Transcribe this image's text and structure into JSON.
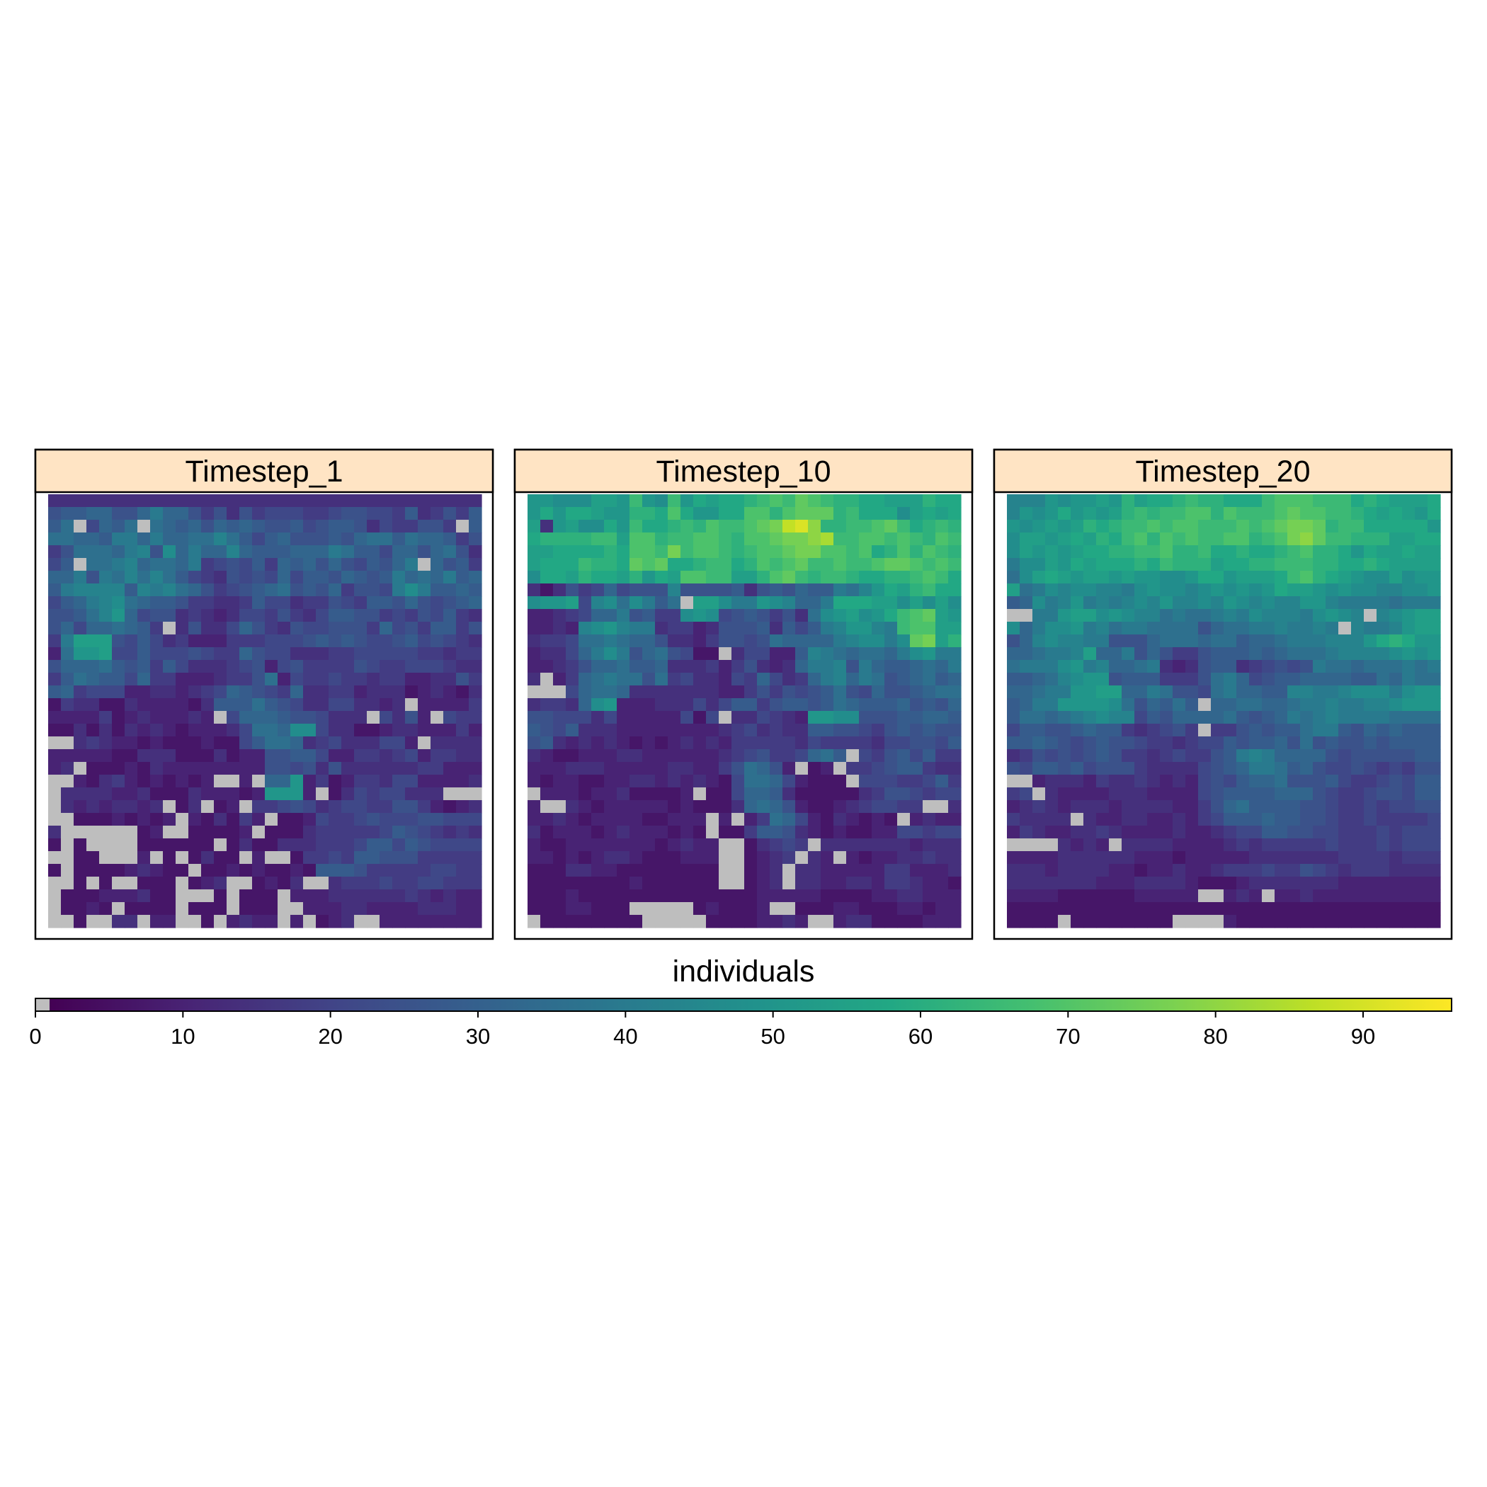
{
  "chart_data": {
    "type": "heatmap",
    "title": "",
    "legend": {
      "title": "individuals",
      "position": "bottom",
      "range": [
        0,
        96
      ],
      "ticks": [
        0,
        10,
        20,
        30,
        40,
        50,
        60,
        70,
        80,
        90
      ],
      "tick_labels": [
        "0",
        "10",
        "20",
        "30",
        "40",
        "50",
        "60",
        "70",
        "80",
        "90"
      ],
      "zero_color": "#bebebe",
      "palette": "viridis"
    },
    "grid": {
      "rows": 34,
      "cols": 34,
      "na_color": "#ffffff"
    },
    "panels": [
      {
        "name": "Timestep_1",
        "rows": [
          "DDDDDDDDDDDDDDDDDDDDDDDDDDDDDDDDDD",
          "GHHIIGGIKIIGEGDGEFFFEEFGGFFEHDEGEH",
          "HJ0FIHJ0JIHIGIHIHGGHFGHHGDFEEGGE0H",
          "JJIIHKKIKIIJJLJHFHIGGGHGIJJHJIIHEG",
          "EGJJJIKLGMIKIILIHHHIIIKJHHFIIGIJGD",
          "FH0JJKLIJJIKEFGFHEIHIGIGFHGIK0IGHE",
          "IIKGKJLJLJHFEDGFGFIFHHGIHGHKIJIKHI",
          "HKLLLLHLKLJIGEFGHIJGHGIEGGFKMKHHIH",
          "FHIKLMJIHHGEEDDEHFFDEEGFEHHGIGFGHI",
          "GGHJLNIFGGDEDCDFFEGEDFHHGGEFEGFHED",
          "GIFIIJIHE0DGDDFIGEDGFFGGGEIFGEHHEG",
          "EKOOOGFHFDECCCEEEFFFGHGHGFFGHFGFED",
          "CJNNOFFHFFFGFEEIGFFDDDEEFFFFFEEDEE",
          "GIIIJHGHEHFDDDEFGCFGEEEEGFEEFFFEDD",
          "EHJIHHFIEECCCDEEGJCFEEFEEDEECCDDGE",
          "HIEFFFCCDDCDEFIHGFEIDDEECDDDBCDCBD",
          "BEDDBBDCCCCBDHHHJHGFDDFFDDCD0CCCCE",
          "CCCCEBCDCCCDC0FIIIHGGFDDD0FDGC0FEE",
          "BBDBDBDCDCBCCCDFJJIMMFDDBBCDDCCCEC",
          "00DEDCCBCBBBCBBFHJJIDEFDDDFFC0DDDD",
          "CCCCCBBDDDBBBDBCCGGHHFCCEEDEFCEEDD",
          "CD0BBBCBDCCCCCCCCGGFGDGDDDDDDEECCC",
          "00CBDECBCBCBC00C0IINCEBCEEDFFCCCCD",
          "0DDDDCCDBBBDCCCBCNNNC0BDFEFFDDD000",
          "0DCDCDDCD0BD0BC0EEFGFDEFFEEGGECBCD",
          "00BBBCBCBC0CBDBEC0BBCFEEFGFFFGGFFF",
          "D000000BC00BBBBC0BBBDEEEEEFHGFEDED",
          "B0B0000BBBBBB0BDBBDDDEEEFHHFHGFFFF",
          "00BB000C0B0BDBB0C00BEEFEHHGGGEEEEE",
          "B0BBBBCDCBB0BBCBCBBCBHHHGEEEEEFFEE",
          "00B0B00BBB0BCD00BCBD00DEEEFEEFFEEE",
          "0BBBCCCDBB000B0BBB0CCCDDDDDDEDCDCC",
          "0BBCB0BBBB0BBB0BBB00CCCDDCCCCDDDCC",
          "00B00DD0CC00B0CDCC0C0BCD00CCCCCCCC"
        ]
      },
      {
        "name": "Timestep_10",
        "rows": [
          "NNMMMOONRNMRNPOPPQRSRTSRQQPPOOOQPP",
          "NPNPPONNQQPSPNNPPSSQSTTTQRPPPMOPOP",
          "ODNOMMPNRPPQRQSRRSTUXYVQQRRSTRPQRQ",
          "PQQQQRROSSQRRSSRQSSTUUVWRRSSRSRQSR",
          "OOPPPPQPSSRURSSRQRSSTUUSSRSPQSQSRQ",
          "OPPPRQQPTSTPPQRRPQSRSTRRSRRSTTSRSR",
          "MPPOQPPOQNPOSSRROOQSTRQRRQPPQQRSRP",
          "DBDGEFIFGGGLGGGGHDGHGIHHKJLNPOQRPP",
          "MNNOFLMJMKHJ0OOMKKNMLIIKPPPOOMOMOM",
          "CCDEFIIKGHEEMNMFGHGEGDJMNOMNPRSTON",
          "CCDCLMNLKKDEECDGGGHDHFHKLNNLKRSSOO",
          "DEEFJJKJIIGDDCEGGFGJIIIIKLMMKMTUOQ",
          "CDDFIKMKGIJGFBB0DFFCCHLKJIJJIKMNKK",
          "CCDEGIIJHHIDDDECEGDCDIKKLGKIHHIJIK",
          "D0CEIJKJJGJEFDDCFEIFDEIKLIKJGHIJHI",
          "000FIJJIDDDDDDDCCEGEGFGHJGFIGGHIJJ",
          "DEEDIMNCCCDDDFDFHHEGHHGHJIHHHIGHGI",
          "GGFFFDFCCCCCFBF0DDFEDCNNMMGGGHHIIH",
          "HGFHDDDCCCCCCCCDEFDEDDHHGGFEGHGHGG",
          "GHDCDCDCBCBCDCDCEEEEEDFEEEEDFFGGFH",
          "DCBBCCCDDCCCCCCDEFGEEFIJH0FEGHFHEE",
          "CCCDDDCCCCCDDCCEGJIGC0BC0EEFGHHEDD",
          "CBCCBBCCDDCDCDCBFJJIFCBBB0FFFEEFHE",
          "0CCCBCCDBBBBC0BBFIIHDBBBBBDEGGFEFF",
          "C00DCBCCCCCBCBBBDIJIGCBBCDEFFEE00D",
          "CCDCBCCCCBBCCC0C0CEJIFCBDCBCB0CDCC",
          "DBCCCBCDCCCBCB0BBEHHGDCBCBBCCFFEFF",
          "CBBCCCCCCCBCDCC00BDEFE0DDDDDDDCDDD",
          "CCBCBCDDCBBBCCC00BCDE0DC0CBCCDDEDD",
          "BBBDDCCBBBBBBBB00BCD0DDCCCCCEECCCD",
          "BBBBBBBBCBBBBBB00BCD0DDCCDDCEEDCCB",
          "BBBCBBBBBBBBBBBBBBCCCCCBBBBCCDDCCC",
          "BBBCCBBB00000BCBBBC00BBBCCBBBCCBCC",
          "0BBBBBBBB00000BBBBCCDC00CDDBBBBCCC"
        ]
      },
      {
        "name": "Timestep_20",
        "rows": [
          "LLLNMNNONQOPPQRQQPPPRSSSRRRPQPOOOP",
          "LNMNPNONOQRQRRSSQSRRRSTSSRRQPOPONP",
          "NMNONOQPQRRSRSSRRRSRSTUUTQRRPPPPPN",
          "MOONOPOQPRSQSRSRRSSQRSUVTRRQQQOOPP",
          "MONONOPPQQRRSQQRPPQPPQRSQQPNPOOPOO",
          "KMMONPOPPPQPRQQQOPPQQRRRQQPPQPOOOO",
          "JMOPONOONONNMMNPPNOOOPRSQPONMMOMNN",
          "OJKMLMMLLKMNMMLMNMNMNPOONMNMMLLMMN",
          "HIMKLNKLKLMLNLLMLNMLMLLNNLKKKKJKKK",
          "00KKNOOMNMLLJKJJKLKMLLLKMNML0LMNOO",
          "MIKMMNKLJKKJJJJGIJJKKLKKLK0LKKLNOO",
          "GILMLLKKGGGIJJJIJJHIIJKKKLLLNPQPNN",
          "IIJKKLOIIKGIGEEGHHHIHIJJJKLLLLMNMN",
          "JKKKMNKLIIJKDCDGHHDEFGFGKJJIJJJKJK",
          "HHIJLMNNGHHHEEEGJKIFGHHIIIIHHJIKJJ",
          "IIJKKNNOOIIKJGGFJKIIHHLLKKLMMMKMNN",
          "HIKKNNNNMJGIHJH0IIJJIIJKKLKKLLMNNN",
          "HJJIJKLMLLFHGIIIIJHGHIKJKLKKKKJJJJ",
          "FHHGGHIHHEDEFGE0EEGHGHHJKKHGIHIHHH",
          "HHIHGFGHGGFEEDEFFHGHHIGJGHGGHGHHHH",
          "DEGFGFGHGEEDEFEEGHKLKIIIIGFGGGGGHH",
          "GFHHGHFGGGEDDDDFGHIKKJHIGFFGFEFEGG",
          "00CDDDCEDDEDCDCFGFHIIJGGGHFEEFGFHH",
          "EF0DCCCCDDDCCCCFGHHHHIIIGFEEFGGFHH",
          "CDEDCDDDCDDDDCCEGIJHHHHGGFEEFEFFGG",
          "EDDDD0DCCDDCCDCEFHHHIHHGGFEEFEEEEF",
          "CEDCCDDEDCCCCDCCDEFFHHGGFFEEEFEFFF",
          "0000DCDC0DDDDCCCCDEDEEEEEFEEEFEFFF",
          "CCCCDDDDDDCCCBCCCCCDDDDDDDEEEEDEEE",
          "DDDCDDDDCCBCCDCCDEEEFEEGFEDEEEDDDD",
          "DDDDDDDCCCDDDDCBBBCDDDDDDDCCCCCCCC",
          "CCCCBBBBBBCCCCC00CDC0CCDCCCCCCCCCC",
          "BBBBBBBBBBBBBBBBBBBBBBBBBBBBBBBBBB",
          "BBBB0BBBBBBBB0000CBBBBBBBBBBBBBBBB"
        ]
      }
    ]
  }
}
